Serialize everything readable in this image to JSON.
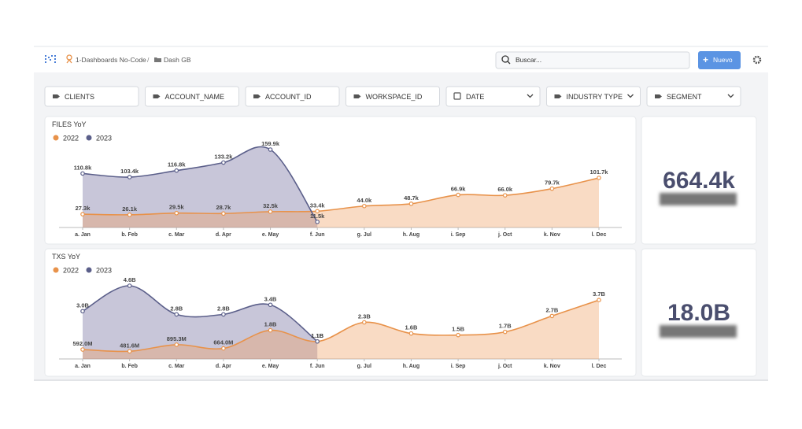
{
  "header": {
    "breadcrumb": [
      "1-Dashboards No-Code",
      "/",
      "Dash GB"
    ],
    "search_placeholder": "Buscar...",
    "new_button": "Nuevo"
  },
  "filters": [
    {
      "label": "CLIENTS",
      "dropdown": false
    },
    {
      "label": "ACCOUNT_NAME",
      "dropdown": false
    },
    {
      "label": "ACCOUNT_ID",
      "dropdown": false
    },
    {
      "label": "WORKSPACE_ID",
      "dropdown": false
    },
    {
      "label": "DATE",
      "dropdown": true
    },
    {
      "label": "INDUSTRY TYPE",
      "dropdown": true
    },
    {
      "label": "SEGMENT",
      "dropdown": true
    }
  ],
  "chart_data": [
    {
      "type": "area",
      "title": "FILES YoY",
      "categories": [
        "a. Jan",
        "b. Feb",
        "c. Mar",
        "d. Apr",
        "e. May",
        "f. Jun",
        "g. Jul",
        "h. Aug",
        "i. Sep",
        "j. Oct",
        "k. Nov",
        "l. Dec"
      ],
      "series": [
        {
          "name": "2022",
          "color": "#e8924a",
          "values": [
            27300,
            26100,
            29500,
            28700,
            32500,
            33400,
            44000,
            48700,
            66900,
            66000,
            79700,
            101700
          ],
          "value_labels": [
            "27.3k",
            "26.1k",
            "29.5k",
            "28.7k",
            "32.5k",
            "33.4k",
            "44.0k",
            "48.7k",
            "66.9k",
            "66.0k",
            "79.7k",
            "101.7k"
          ]
        },
        {
          "name": "2023",
          "color": "#5b5f8a",
          "values": [
            110800,
            103400,
            116800,
            133200,
            159900,
            11500,
            null,
            null,
            null,
            null,
            null,
            null
          ],
          "value_labels": [
            "110.8k",
            "103.4k",
            "116.8k",
            "133.2k",
            "159.9k",
            "11.5k",
            null,
            null,
            null,
            null,
            null,
            null
          ]
        }
      ],
      "legend": "top-left"
    },
    {
      "type": "area",
      "title": "TXS YoY",
      "categories": [
        "a. Jan",
        "b. Feb",
        "c. Mar",
        "d. Apr",
        "e. May",
        "f. Jun",
        "g. Jul",
        "h. Aug",
        "i. Sep",
        "j. Oct",
        "k. Nov",
        "l. Dec"
      ],
      "series": [
        {
          "name": "2022",
          "color": "#e8924a",
          "values": [
            592000000,
            481600000,
            895300000,
            664000000,
            1800000000,
            1100000000,
            2300000000,
            1600000000,
            1500000000,
            1700000000,
            2700000000,
            3700000000
          ],
          "value_labels": [
            "592.0M",
            "481.6M",
            "895.3M",
            "664.0M",
            "1.8B",
            "1.1B",
            "2.3B",
            "1.6B",
            "1.5B",
            "1.7B",
            "2.7B",
            "3.7B"
          ]
        },
        {
          "name": "2023",
          "color": "#5b5f8a",
          "values": [
            3000000000,
            4600000000,
            2800000000,
            2800000000,
            3400000000,
            1100000000,
            null,
            null,
            null,
            null,
            null,
            null
          ],
          "value_labels": [
            "3.0B",
            "4.6B",
            "2.8B",
            "2.8B",
            "3.4B",
            "1.1B",
            null,
            null,
            null,
            null,
            null,
            null
          ]
        }
      ],
      "legend": "top-left"
    }
  ],
  "kpis": [
    {
      "value": "664.4k"
    },
    {
      "value": "18.0B"
    }
  ]
}
